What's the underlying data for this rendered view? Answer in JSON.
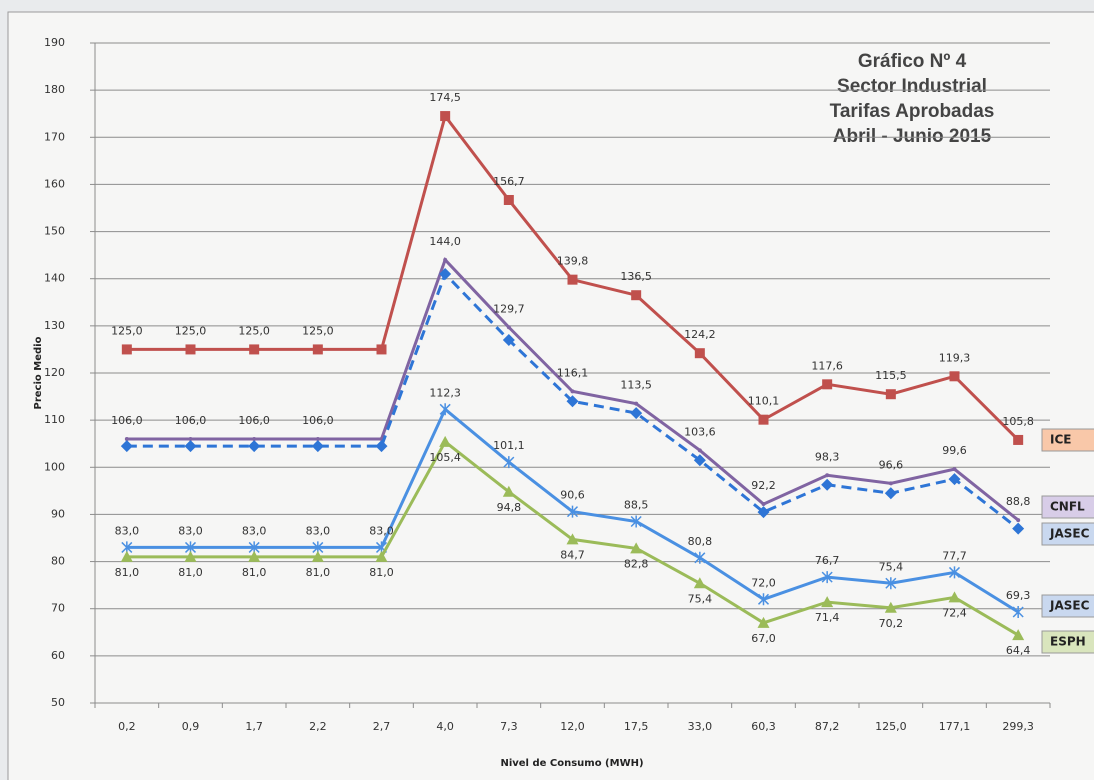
{
  "chart_data": {
    "type": "line",
    "title_lines": [
      "Gráfico Nº 4",
      "Sector Industrial",
      "Tarifas Aprobadas",
      "Abril - Junio 2015"
    ],
    "y_label": "Precio Medio",
    "x_label": "Nivel de Consumo (MWH)",
    "categories": [
      "0,2",
      "0,9",
      "1,7",
      "2,2",
      "2,7",
      "4,0",
      "7,3",
      "12,0",
      "17,5",
      "33,0",
      "60,3",
      "87,2",
      "125,0",
      "177,1",
      "299,3"
    ],
    "ylim": [
      50,
      190
    ],
    "yticks": [
      50,
      60,
      70,
      80,
      90,
      100,
      110,
      120,
      130,
      140,
      150,
      160,
      170,
      180,
      190
    ],
    "grid": true,
    "series": [
      {
        "name": "ICE",
        "color": "#c0504d",
        "marker": "square",
        "dashed": false,
        "values": [
          125,
          125,
          125,
          125,
          125,
          174.5,
          156.7,
          139.8,
          136.5,
          124.2,
          110.1,
          117.6,
          115.5,
          119.3,
          105.8
        ],
        "value_labels": [
          "125,0",
          "125,0",
          "125,0",
          "125,0",
          null,
          "174,5",
          "156,7",
          "139,8",
          "136,5",
          "124,2",
          "110,1",
          "117,6",
          "115,5",
          "119,3",
          "105,8"
        ]
      },
      {
        "name": "CNFL",
        "color": "#8064a2",
        "marker": "none",
        "dashed": false,
        "values": [
          106,
          106,
          106,
          106,
          106,
          144.0,
          129.7,
          116.1,
          113.5,
          103.6,
          92.2,
          98.3,
          96.6,
          99.6,
          88.8
        ],
        "value_labels": [
          "106,0",
          "106,0",
          "106,0",
          "106,0",
          null,
          "144,0",
          "129,7",
          "116,1",
          "113,5",
          "103,6",
          "92,2",
          "98,3",
          "96,6",
          "99,6",
          "88,8"
        ]
      },
      {
        "name": "JASEC Pro",
        "color": "#2e75d6",
        "marker": "diamond",
        "dashed": true,
        "values": [
          104.5,
          104.5,
          104.5,
          104.5,
          104.5,
          141,
          127,
          114,
          111.5,
          101.5,
          90.5,
          96.3,
          94.5,
          97.5,
          87
        ]
      },
      {
        "name": "JASEC",
        "color": "#4a90e2",
        "marker": "star",
        "dashed": false,
        "values": [
          83,
          83,
          83,
          83,
          83,
          112.3,
          101.1,
          90.6,
          88.5,
          80.8,
          72.0,
          76.7,
          75.4,
          77.7,
          69.3
        ],
        "value_labels": [
          "83,0",
          "83,0",
          "83,0",
          "83,0",
          "83,0",
          "112,3",
          "101,1",
          "90,6",
          "88,5",
          "80,8",
          "72,0",
          "76,7",
          "75,4",
          "77,7",
          "69,3"
        ]
      },
      {
        "name": "ESPH",
        "color": "#9bbb59",
        "marker": "triangle",
        "dashed": false,
        "values": [
          81,
          81,
          81,
          81,
          81,
          105.4,
          94.8,
          84.7,
          82.8,
          75.4,
          67.0,
          71.4,
          70.2,
          72.4,
          64.4
        ],
        "value_labels": [
          "81,0",
          "81,0",
          "81,0",
          "81,0",
          "81,0",
          "105,4",
          "94,8",
          "84,7",
          "82,8",
          "75,4",
          "67,0",
          "71,4",
          "70,2",
          "72,4",
          "64,4"
        ]
      }
    ]
  }
}
